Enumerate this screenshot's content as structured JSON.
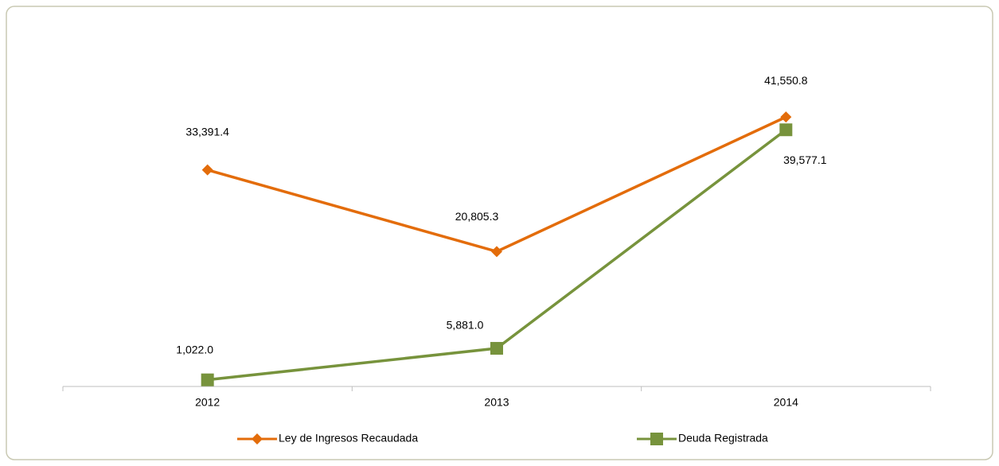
{
  "chart_data": {
    "type": "line",
    "categories": [
      "2012",
      "2013",
      "2014"
    ],
    "series": [
      {
        "name": "Ley de Ingresos Recaudada",
        "color": "#e36c0a",
        "marker": "diamond",
        "values": [
          33391.4,
          20805.3,
          41550.8
        ],
        "value_labels": [
          "33,391.4",
          "20,805.3",
          "41,550.8"
        ]
      },
      {
        "name": "Deuda Registrada",
        "color": "#77933c",
        "marker": "square",
        "values": [
          1022.0,
          5881.0,
          39577.1
        ],
        "value_labels": [
          "1,022.0",
          "5,881.0",
          "39,577.1"
        ]
      }
    ],
    "ylim": [
      0,
      45000
    ],
    "legend": "bottom"
  }
}
